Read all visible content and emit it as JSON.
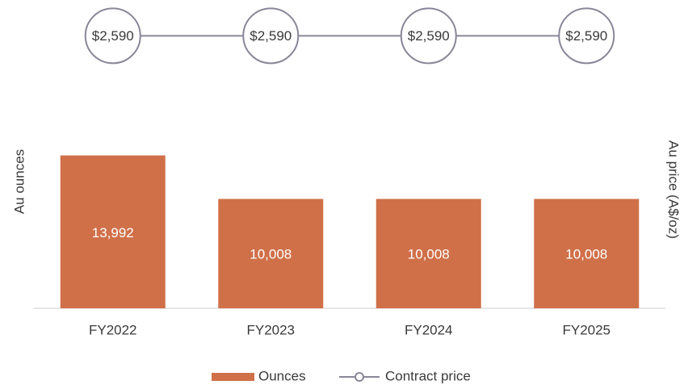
{
  "chart_data": {
    "type": "bar_line",
    "categories": [
      "FY2022",
      "FY2023",
      "FY2024",
      "FY2025"
    ],
    "series": [
      {
        "name": "Ounces",
        "type": "bar",
        "color": "#d07049",
        "values": [
          13992,
          10008,
          10008,
          10008
        ],
        "value_labels": [
          "13,992",
          "10,008",
          "10,008",
          "10,008"
        ]
      },
      {
        "name": "Contract price",
        "type": "line",
        "axis": "y2",
        "color": "#8a8698",
        "values": [
          2590,
          2590,
          2590,
          2590
        ],
        "value_labels": [
          "$2,590",
          "$2,590",
          "$2,590",
          "$2,590"
        ]
      }
    ],
    "ylabel": "Au ounces",
    "y2label": "Au price (A$/oz)",
    "ylim": [
      0,
      26000
    ],
    "y2lim": [
      0,
      2700
    ],
    "legend": "bottom"
  }
}
